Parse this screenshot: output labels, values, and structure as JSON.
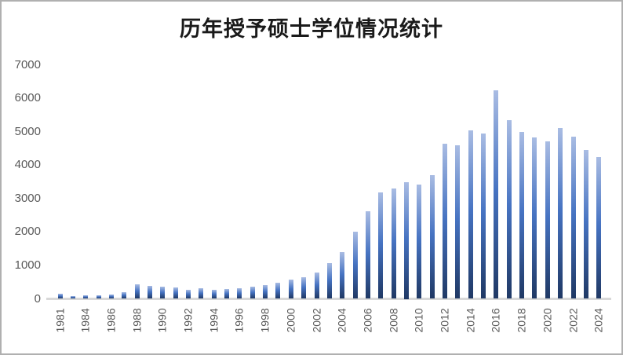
{
  "chart_data": {
    "type": "bar",
    "title": "历年授予硕士学位情况统计",
    "categories": [
      "1981",
      "1983",
      "1984",
      "1985",
      "1986",
      "1987",
      "1988",
      "1989",
      "1990",
      "1991",
      "1992",
      "1993",
      "1994",
      "1995",
      "1996",
      "1997",
      "1998",
      "1999",
      "2000",
      "2001",
      "2002",
      "2003",
      "2004",
      "2005",
      "2006",
      "2007",
      "2008",
      "2009",
      "2010",
      "2011",
      "2012",
      "2013",
      "2014",
      "2015",
      "2016",
      "2017",
      "2018",
      "2019",
      "2020",
      "2021",
      "2022",
      "2023",
      "2024"
    ],
    "values": [
      160,
      80,
      100,
      110,
      130,
      210,
      430,
      385,
      360,
      335,
      270,
      320,
      260,
      305,
      325,
      375,
      405,
      485,
      585,
      645,
      790,
      1080,
      1390,
      2010,
      2630,
      3180,
      3290,
      3500,
      3420,
      3700,
      4630,
      4590,
      5030,
      4940,
      6225,
      5340,
      4980,
      4820,
      4700,
      5120,
      4860,
      4440,
      4230
    ],
    "x_tick_labels": [
      "1981",
      "1984",
      "1986",
      "1988",
      "1990",
      "1992",
      "1994",
      "1996",
      "1998",
      "2000",
      "2002",
      "2004",
      "2006",
      "2008",
      "2010",
      "2012",
      "2014",
      "2016",
      "2018",
      "2020",
      "2022",
      "2024"
    ],
    "x_tick_interval": 2,
    "y_ticks": [
      0,
      1000,
      2000,
      3000,
      4000,
      5000,
      6000,
      7000
    ],
    "ylim": [
      0,
      7000
    ],
    "xlabel": "",
    "ylabel": "",
    "grid": false,
    "legend_position": "none",
    "colors": {
      "bar_gradient_top": "#a9bce3",
      "bar_gradient_mid": "#4673c2",
      "bar_gradient_bottom": "#1f3864",
      "axis_label": "#595959",
      "axis_line": "#d8d8d8",
      "title": "#1a1a1a",
      "background": "#ffffff",
      "border": "#b0b0b0"
    }
  }
}
